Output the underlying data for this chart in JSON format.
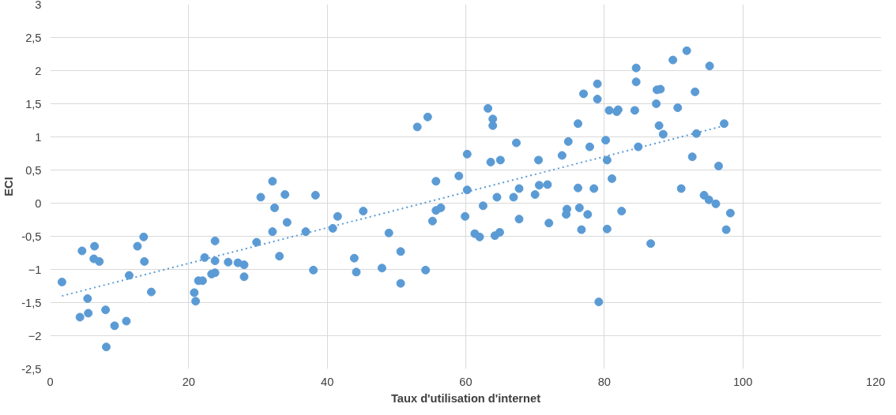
{
  "chart_data": {
    "type": "scatter",
    "xlabel": "Taux d'utilisation d'internet",
    "ylabel": "ECI",
    "xlim": [
      0,
      120
    ],
    "xticks": [
      0,
      20,
      40,
      60,
      80,
      100,
      120
    ],
    "ylim": [
      -2.5,
      3
    ],
    "yticks": [
      {
        "value": -2.5,
        "label": "-2,5"
      },
      -2,
      {
        "value": -1.5,
        "label": "-1,5"
      },
      -1,
      {
        "value": -0.5,
        "label": "-0,5"
      },
      0,
      {
        "value": 0.5,
        "label": "0,5"
      },
      1,
      {
        "value": 1.5,
        "label": "1,5"
      },
      2,
      {
        "value": 2.5,
        "label": "2,5"
      },
      3
    ],
    "grid": true,
    "marker": "circle",
    "series": [
      {
        "color": "#5b9bd5",
        "x": [
          1.7,
          4.3,
          4.6,
          5.4,
          5.5,
          6.3,
          6.4,
          7.1,
          8.0,
          8.1,
          9.3,
          11.0,
          11.4,
          12.6,
          13.5,
          13.6,
          14.6,
          20.8,
          21.0,
          21.4,
          22.0,
          22.3,
          23.3,
          23.8,
          23.8,
          23.8,
          25.7,
          27.1,
          28.0,
          28.0,
          29.8,
          30.4,
          32.1,
          32.4,
          32.1,
          33.1,
          33.9,
          34.2,
          36.9,
          38.0,
          38.3,
          40.8,
          41.5,
          43.9,
          44.2,
          45.2,
          47.9,
          48.9,
          50.6,
          50.6,
          53.0,
          54.2,
          54.5,
          55.2,
          55.7,
          55.7,
          56.4,
          59.0,
          59.9,
          60.2,
          60.2,
          61.3,
          62.0,
          62.5,
          63.2,
          63.6,
          63.9,
          63.9,
          64.2,
          64.5,
          64.9,
          65.0,
          66.9,
          67.3,
          67.7,
          67.7,
          70.0,
          70.5,
          70.6,
          71.8,
          72.0,
          73.9,
          74.5,
          74.6,
          74.8,
          76.2,
          76.2,
          76.4,
          76.7,
          77.0,
          77.6,
          77.9,
          78.5,
          79.0,
          79.0,
          79.2,
          80.2,
          80.4,
          80.4,
          80.7,
          81.1,
          81.8,
          82.0,
          82.5,
          84.4,
          84.6,
          84.6,
          84.9,
          86.7,
          87.5,
          87.6,
          87.9,
          88.1,
          88.5,
          89.9,
          90.6,
          91.1,
          91.9,
          92.7,
          93.1,
          93.3,
          94.4,
          95.1,
          95.2,
          96.1,
          96.5,
          97.3,
          97.6,
          98.2
        ],
        "values": [
          -1.19,
          -1.72,
          -0.72,
          -1.44,
          -1.66,
          -0.84,
          -0.65,
          -0.88,
          -1.61,
          -2.17,
          -1.85,
          -1.78,
          -1.09,
          -0.65,
          -0.51,
          -0.88,
          -1.34,
          -1.35,
          -1.48,
          -1.17,
          -1.17,
          -0.82,
          -1.07,
          -1.05,
          -0.57,
          -0.87,
          -0.89,
          -0.9,
          -0.93,
          -1.11,
          -0.59,
          0.09,
          0.33,
          -0.07,
          -0.43,
          -0.8,
          0.13,
          -0.29,
          -0.43,
          -1.01,
          0.12,
          -0.38,
          -0.2,
          -0.83,
          -1.04,
          -0.12,
          -0.98,
          -0.45,
          -0.73,
          -1.21,
          1.15,
          -1.01,
          1.3,
          -0.27,
          0.33,
          -0.11,
          -0.07,
          0.41,
          -0.2,
          0.74,
          0.2,
          -0.46,
          -0.51,
          -0.04,
          1.43,
          0.62,
          1.27,
          1.17,
          -0.49,
          0.09,
          -0.44,
          0.65,
          0.09,
          0.91,
          -0.24,
          0.22,
          0.13,
          0.65,
          0.27,
          0.28,
          -0.3,
          0.72,
          -0.17,
          -0.09,
          0.93,
          1.2,
          0.23,
          -0.07,
          -0.4,
          1.65,
          -0.17,
          0.85,
          0.22,
          1.8,
          1.57,
          -1.49,
          0.95,
          0.65,
          -0.39,
          1.4,
          0.37,
          1.38,
          1.41,
          -0.12,
          1.4,
          2.04,
          1.83,
          0.85,
          -0.61,
          1.5,
          1.71,
          1.17,
          1.72,
          1.04,
          2.16,
          1.44,
          0.22,
          2.3,
          0.7,
          1.68,
          1.05,
          0.12,
          0.05,
          2.07,
          -0.01,
          0.56,
          1.2,
          -0.4,
          -0.15
        ]
      },
      {
        "type": "line",
        "color": "#5b9bd5",
        "line_style": "dotted",
        "marker": "none",
        "x": [
          1.7,
          97.4
        ],
        "values": [
          -1.4,
          1.17
        ]
      }
    ]
  }
}
